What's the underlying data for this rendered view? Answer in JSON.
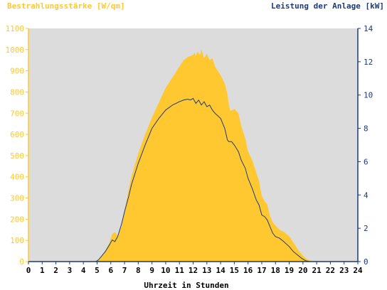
{
  "chart_data": {
    "type": "area",
    "title_left": "Bestrahlungsstärke [W/qm]",
    "title_right": "Leistung der Anlage [kW]",
    "xlabel": "Uhrzeit in Stunden",
    "xlim": [
      0,
      24
    ],
    "ylim_left": [
      0,
      1100
    ],
    "ylim_right": [
      0,
      14
    ],
    "x_ticks": [
      0,
      1,
      2,
      3,
      4,
      5,
      6,
      7,
      8,
      9,
      10,
      11,
      12,
      13,
      14,
      15,
      16,
      17,
      18,
      19,
      20,
      21,
      22,
      23,
      24
    ],
    "y_ticks_left": [
      0,
      100,
      200,
      300,
      400,
      500,
      600,
      700,
      800,
      900,
      1000,
      1100
    ],
    "y_ticks_right": [
      0,
      2,
      4,
      6,
      8,
      10,
      12,
      14
    ],
    "grid": false,
    "colors": {
      "plot_background": "#dcdcdc",
      "irradiance_fill": "#ffc830",
      "power_line": "#1e3a78",
      "left_axis": "#ffc830",
      "right_axis": "#1e3a78"
    },
    "series": [
      {
        "axis": "left",
        "style": "filled-area",
        "x": [
          0,
          4.8,
          5.0,
          5.3,
          5.6,
          5.9,
          6.1,
          6.3,
          6.5,
          6.8,
          7.0,
          7.3,
          7.5,
          8.0,
          8.5,
          9.0,
          9.5,
          10.0,
          10.5,
          11.0,
          11.3,
          11.6,
          11.8,
          12.0,
          12.1,
          12.2,
          12.3,
          12.5,
          12.6,
          12.8,
          13.0,
          13.2,
          13.4,
          13.6,
          14.0,
          14.3,
          14.5,
          14.6,
          14.7,
          15.0,
          15.3,
          15.5,
          15.8,
          16.0,
          16.3,
          16.6,
          16.8,
          17.0,
          17.2,
          17.4,
          17.6,
          17.8,
          18.0,
          18.3,
          18.6,
          19.0,
          19.3,
          19.6,
          19.9,
          20.2,
          20.5,
          20.8,
          21.0,
          24
        ],
        "y": [
          0,
          0,
          5,
          20,
          50,
          90,
          130,
          140,
          120,
          170,
          240,
          340,
          400,
          510,
          600,
          680,
          750,
          820,
          870,
          920,
          950,
          965,
          970,
          975,
          985,
          970,
          990,
          975,
          1000,
          960,
          980,
          950,
          960,
          920,
          880,
          840,
          790,
          740,
          710,
          720,
          700,
          640,
          580,
          520,
          480,
          420,
          380,
          310,
          285,
          270,
          215,
          185,
          170,
          150,
          140,
          120,
          90,
          60,
          35,
          15,
          5,
          0,
          0,
          0
        ]
      },
      {
        "axis": "right",
        "style": "line",
        "x": [
          0,
          4.9,
          5.1,
          5.3,
          5.6,
          5.9,
          6.1,
          6.3,
          6.5,
          6.8,
          7.0,
          7.3,
          7.5,
          8.0,
          8.5,
          9.0,
          9.5,
          10.0,
          10.5,
          11.0,
          11.3,
          11.6,
          11.8,
          12.0,
          12.2,
          12.4,
          12.6,
          12.8,
          13.0,
          13.2,
          13.4,
          13.6,
          14.0,
          14.3,
          14.5,
          14.6,
          14.8,
          15.0,
          15.3,
          15.5,
          15.8,
          16.0,
          16.3,
          16.6,
          16.8,
          17.0,
          17.2,
          17.4,
          17.6,
          17.8,
          18.0,
          18.3,
          18.6,
          19.0,
          19.3,
          19.6,
          19.9,
          20.2,
          20.5,
          20.8,
          21.0,
          24
        ],
        "y": [
          0,
          0,
          0.1,
          0.3,
          0.6,
          1.0,
          1.3,
          1.2,
          1.5,
          2.3,
          3.0,
          3.9,
          4.6,
          5.9,
          7.0,
          8.0,
          8.6,
          9.1,
          9.4,
          9.6,
          9.7,
          9.75,
          9.7,
          9.8,
          9.5,
          9.7,
          9.4,
          9.6,
          9.3,
          9.4,
          9.1,
          8.9,
          8.6,
          8.0,
          7.3,
          7.2,
          7.2,
          7.0,
          6.6,
          6.1,
          5.6,
          5.0,
          4.4,
          3.7,
          3.4,
          2.8,
          2.7,
          2.5,
          2.1,
          1.7,
          1.5,
          1.4,
          1.2,
          0.9,
          0.6,
          0.4,
          0.2,
          0.05,
          0,
          0,
          0,
          0
        ]
      }
    ]
  }
}
